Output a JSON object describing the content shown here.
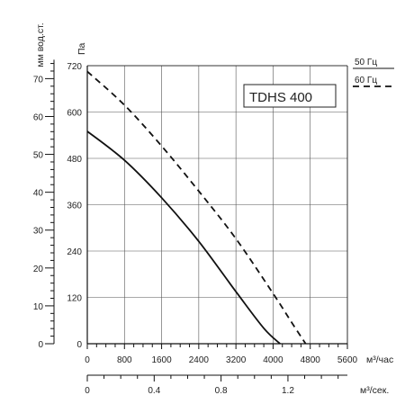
{
  "chart_data": {
    "type": "line",
    "title": "TDHS 400",
    "left_axis_label": "мм вод.ст.",
    "left_axis_ticks": [
      0,
      10,
      20,
      30,
      40,
      50,
      60,
      70
    ],
    "pa_axis_label": "Па",
    "pa_axis_ticks": [
      0,
      120,
      240,
      360,
      480,
      600,
      720
    ],
    "ylim_pa": [
      0,
      720
    ],
    "x_axis_unit": "м³/час",
    "x_axis_ticks": [
      0,
      800,
      1600,
      2400,
      3200,
      4000,
      4800,
      5600
    ],
    "xlim": [
      0,
      5600
    ],
    "x2_axis_unit": "м³/сек.",
    "x2_axis_ticks": [
      "0",
      "0.4",
      "0.8",
      "1.2"
    ],
    "grid": true,
    "legend_position": "top-right",
    "series": [
      {
        "name": "50 Гц",
        "style": "solid",
        "x": [
          0,
          800,
          1600,
          2400,
          3200,
          3800,
          4150
        ],
        "y": [
          550,
          475,
          378,
          265,
          135,
          40,
          0
        ]
      },
      {
        "name": "60 Гц",
        "style": "dashed",
        "x": [
          0,
          800,
          1600,
          2400,
          3200,
          4000,
          4400,
          4700
        ],
        "y": [
          705,
          618,
          512,
          395,
          272,
          130,
          55,
          0
        ]
      }
    ]
  }
}
